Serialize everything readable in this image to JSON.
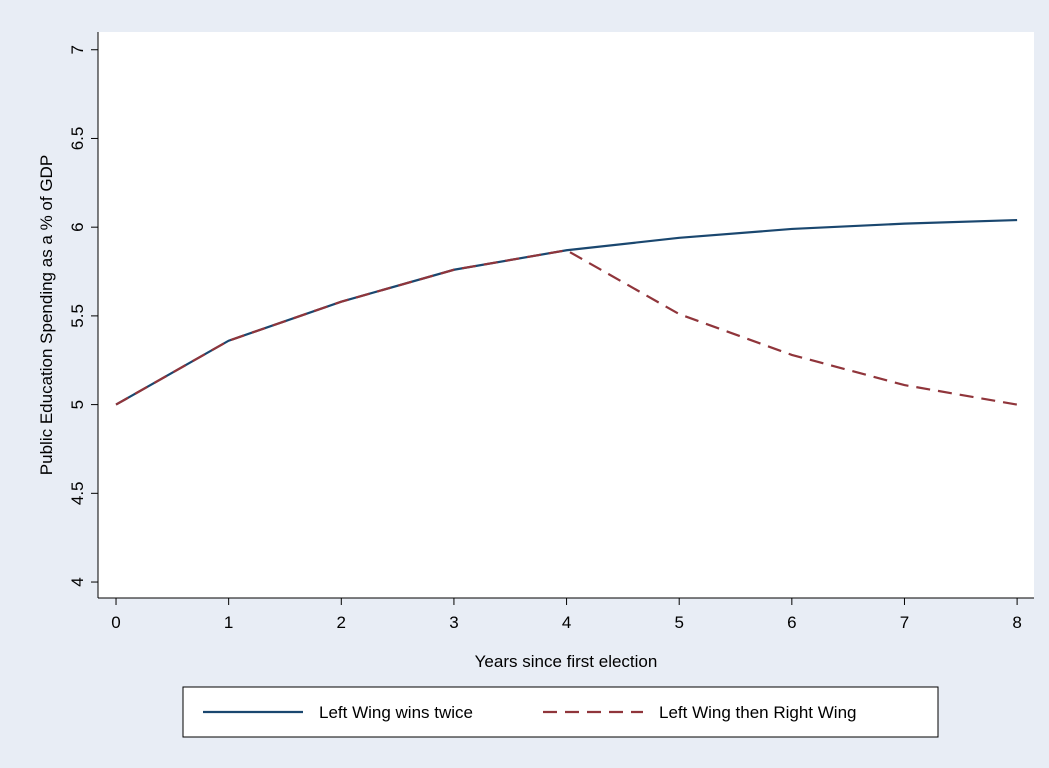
{
  "chart_data": {
    "type": "line",
    "x_label": "Years since first election",
    "y_label": "Public Education Spending as a % of GDP",
    "x": [
      0,
      1,
      2,
      3,
      4,
      5,
      6,
      7,
      8
    ],
    "series": [
      {
        "name": "Left Wing wins twice",
        "color": "#1a476f",
        "dash": "solid",
        "values": [
          5.0,
          5.36,
          5.58,
          5.76,
          5.87,
          5.94,
          5.99,
          6.02,
          6.04
        ]
      },
      {
        "name": "Left Wing then Right Wing",
        "color": "#90353b",
        "dash": "dashed",
        "values": [
          5.0,
          5.36,
          5.58,
          5.76,
          5.87,
          5.51,
          5.28,
          5.11,
          5.0
        ]
      }
    ],
    "xlim": [
      -0.16,
      8.15
    ],
    "ylim": [
      3.91,
      7.1
    ],
    "xticks": [
      0,
      1,
      2,
      3,
      4,
      5,
      6,
      7,
      8
    ],
    "yticks": [
      4,
      4.5,
      5,
      5.5,
      6,
      6.5,
      7
    ]
  }
}
